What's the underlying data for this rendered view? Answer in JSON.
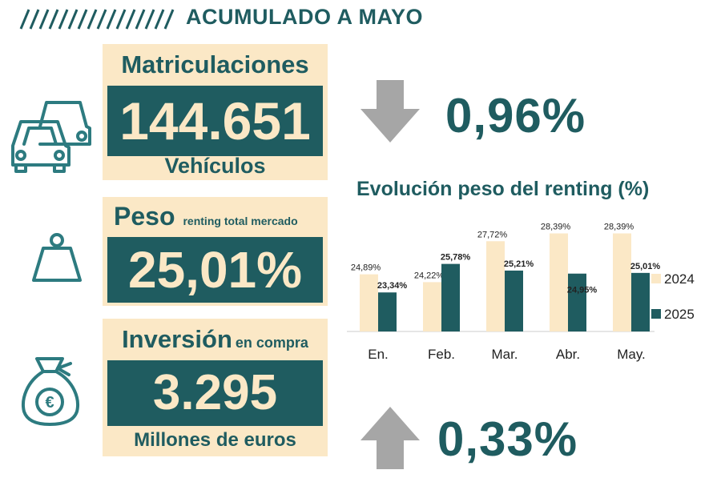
{
  "header": {
    "title": "ACUMULADO A MAYO"
  },
  "colors": {
    "teal": "#1f5c60",
    "cream": "#fbe8c6",
    "arrow": "#a6a6a6"
  },
  "registrations": {
    "label": "Matriculaciones",
    "value": "144.651",
    "unit": "Vehículos",
    "change": "0,96%",
    "direction_icon": "arrow-down-icon"
  },
  "weight": {
    "label": "Peso",
    "sublabel": "renting total mercado",
    "value": "25,01%"
  },
  "investment": {
    "label": "Inversión",
    "sublabel": "en compra",
    "value": "3.295",
    "unit": "Millones de euros",
    "change": "0,33%",
    "direction_icon": "arrow-up-icon"
  },
  "chart_data": {
    "type": "bar",
    "title": "Evolución peso del renting (%)",
    "categories": [
      "En.",
      "Feb.",
      "Mar.",
      "Abr.",
      "May."
    ],
    "series": [
      {
        "name": "2024",
        "color": "#fbe8c6",
        "values": [
          24.89,
          24.22,
          27.72,
          28.39,
          28.39
        ],
        "labels": [
          "24,89%",
          "24,22%",
          "27,72%",
          "28,39%",
          "28,39%"
        ]
      },
      {
        "name": "2025",
        "color": "#1f5c60",
        "values": [
          23.34,
          25.78,
          25.21,
          24.95,
          25.01
        ],
        "labels": [
          "23,34%",
          "25,78%",
          "25,21%",
          "24,95%",
          "25,01%"
        ]
      }
    ],
    "legend": "right",
    "grid": false
  }
}
